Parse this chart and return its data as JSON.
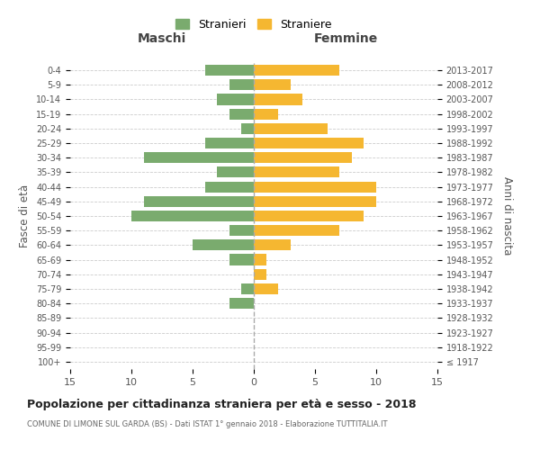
{
  "age_groups": [
    "100+",
    "95-99",
    "90-94",
    "85-89",
    "80-84",
    "75-79",
    "70-74",
    "65-69",
    "60-64",
    "55-59",
    "50-54",
    "45-49",
    "40-44",
    "35-39",
    "30-34",
    "25-29",
    "20-24",
    "15-19",
    "10-14",
    "5-9",
    "0-4"
  ],
  "birth_years": [
    "≤ 1917",
    "1918-1922",
    "1923-1927",
    "1928-1932",
    "1933-1937",
    "1938-1942",
    "1943-1947",
    "1948-1952",
    "1953-1957",
    "1958-1962",
    "1963-1967",
    "1968-1972",
    "1973-1977",
    "1978-1982",
    "1983-1987",
    "1988-1992",
    "1993-1997",
    "1998-2002",
    "2003-2007",
    "2008-2012",
    "2013-2017"
  ],
  "males": [
    0,
    0,
    0,
    0,
    2,
    1,
    0,
    2,
    5,
    2,
    10,
    9,
    4,
    3,
    9,
    4,
    1,
    2,
    3,
    2,
    4
  ],
  "females": [
    0,
    0,
    0,
    0,
    0,
    2,
    1,
    1,
    3,
    7,
    9,
    10,
    10,
    7,
    8,
    9,
    6,
    2,
    4,
    3,
    7
  ],
  "male_color": "#7aab6e",
  "female_color": "#f5b731",
  "background_color": "#ffffff",
  "grid_color": "#cccccc",
  "title": "Popolazione per cittadinanza straniera per età e sesso - 2018",
  "subtitle": "COMUNE DI LIMONE SUL GARDA (BS) - Dati ISTAT 1° gennaio 2018 - Elaborazione TUTTITALIA.IT",
  "xlabel_left": "Maschi",
  "xlabel_right": "Femmine",
  "ylabel_left": "Fasce di età",
  "ylabel_right": "Anni di nascita",
  "legend_male": "Stranieri",
  "legend_female": "Straniere",
  "xlim": 15
}
